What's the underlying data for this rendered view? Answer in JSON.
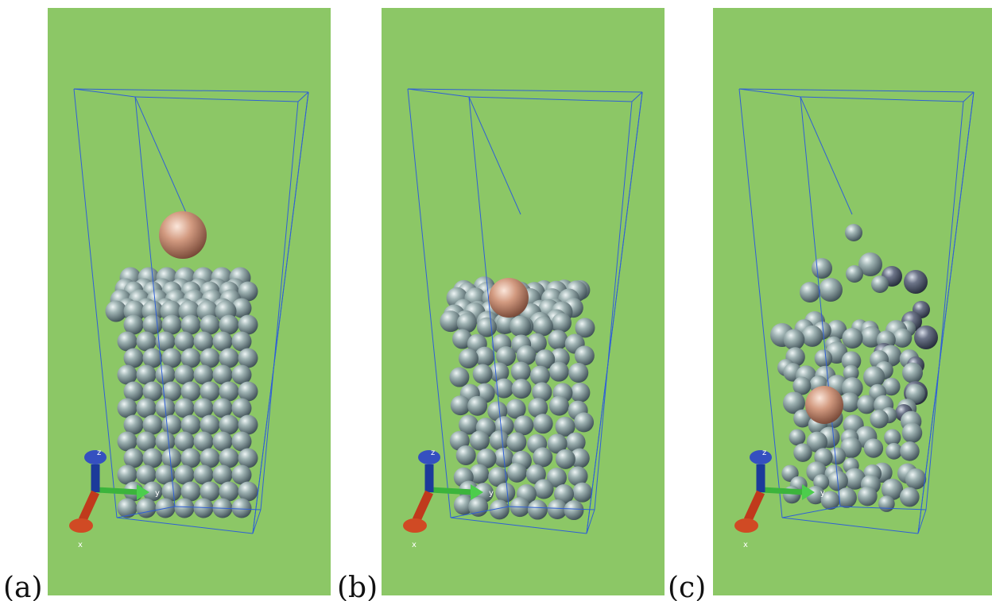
{
  "panels": [
    {
      "label": "(a)",
      "axes": {
        "x": "x",
        "y": "y",
        "z": "z"
      }
    },
    {
      "label": "(b)",
      "axes": {
        "x": "x",
        "y": "y",
        "z": "z"
      }
    },
    {
      "label": "(c)",
      "axes": {
        "x": "x",
        "y": "y",
        "z": "z"
      }
    }
  ]
}
